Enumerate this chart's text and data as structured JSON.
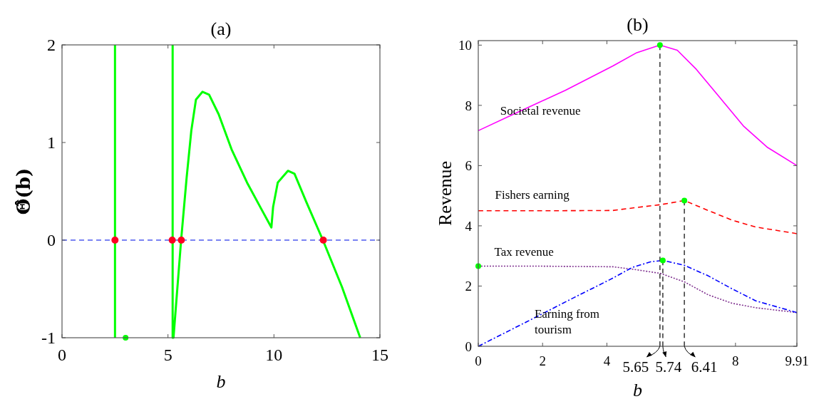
{
  "chart_data": [
    {
      "type": "line",
      "title": "(a)",
      "xlabel": "b",
      "ylabel": "Θ̂(b)",
      "xlim": [
        0,
        15
      ],
      "xticks": [
        0,
        5,
        10,
        15
      ],
      "ylim": [
        -1,
        2
      ],
      "yticks": [
        -1,
        0,
        1,
        2
      ],
      "grid": false,
      "legend": false,
      "ref_lines": [
        {
          "axis": "y",
          "value": 0,
          "color": "#4d5bf0",
          "line_style": "dashed"
        }
      ],
      "series": [
        {
          "type": "line",
          "color": "#00ff00",
          "line_style": "solid",
          "x": [
            2.5,
            2.5,
            3.9,
            5.22,
            5.22,
            5.26,
            5.62,
            5.88,
            6.1,
            6.32,
            6.63,
            6.94,
            7.39,
            8.0,
            8.73,
            9.4,
            9.88,
            9.96,
            10.18,
            10.66,
            10.97,
            11.53,
            12.31,
            13.21,
            14.07
          ],
          "values": [
            2,
            -1,
            null,
            2,
            -1,
            -1,
            0,
            0.64,
            1.12,
            1.44,
            1.52,
            1.49,
            1.29,
            0.93,
            0.59,
            0.32,
            0.13,
            0.34,
            0.59,
            0.71,
            0.68,
            0.39,
            0,
            -0.48,
            -1
          ]
        },
        {
          "type": "scatter",
          "color": "#ff0022",
          "marker": "circle",
          "x": [
            2.5,
            5.2,
            5.63,
            12.33
          ],
          "values": [
            0,
            0,
            0,
            0
          ]
        },
        {
          "type": "scatter",
          "color": "#00ff00",
          "marker": "circle",
          "x": [
            3.0
          ],
          "values": [
            -1
          ]
        }
      ]
    },
    {
      "type": "line",
      "title": "(b)",
      "xlabel": "b",
      "ylabel": "Revenue",
      "xlim": [
        0,
        9.91
      ],
      "xticks": [
        0,
        2,
        4,
        8,
        9.91
      ],
      "ylim": [
        0,
        10.15
      ],
      "yticks": [
        0,
        2,
        4,
        6,
        8,
        10
      ],
      "grid": false,
      "legend": false,
      "annotations": [
        {
          "text": "5.65",
          "x": 5.65,
          "y": 0
        },
        {
          "text": "5.74",
          "x": 5.74,
          "y": 0
        },
        {
          "text": "6.41",
          "x": 6.41,
          "y": 0
        }
      ],
      "series": [
        {
          "type": "line",
          "name": "Societal revenue",
          "color": "#ff00ff",
          "line_style": "solid",
          "x": [
            0,
            1.24,
            2.71,
            4.19,
            4.93,
            5.65,
            6.19,
            6.78,
            7.52,
            8.26,
            9.0,
            9.91
          ],
          "values": [
            7.16,
            7.78,
            8.5,
            9.31,
            9.75,
            10.0,
            9.83,
            9.2,
            8.25,
            7.3,
            6.6,
            6.0
          ]
        },
        {
          "type": "line",
          "name": "Fishers earning",
          "color": "#ff0000",
          "line_style": "dashed",
          "x": [
            0,
            2,
            4.19,
            4.93,
            5.65,
            6.41,
            7.15,
            7.89,
            8.63,
            9.91
          ],
          "values": [
            4.5,
            4.5,
            4.51,
            4.61,
            4.7,
            4.84,
            4.51,
            4.19,
            3.96,
            3.74
          ]
        },
        {
          "type": "line",
          "name": "Tax revenue",
          "color": "#7e2f8e",
          "line_style": "dotted",
          "x": [
            0,
            2,
            4.19,
            4.93,
            5.67,
            6.41,
            7.15,
            7.89,
            8.63,
            9.91
          ],
          "values": [
            2.66,
            2.66,
            2.64,
            2.54,
            2.42,
            2.14,
            1.71,
            1.43,
            1.28,
            1.12
          ]
        },
        {
          "type": "line",
          "name": "Earning from tourism",
          "color": "#0000ff",
          "line_style": "dashdot",
          "x": [
            0,
            1.5,
            3.0,
            4.2,
            4.79,
            5.38,
            5.74,
            6.41,
            7.15,
            7.89,
            8.63,
            9.91
          ],
          "values": [
            0,
            0.81,
            1.63,
            2.27,
            2.62,
            2.81,
            2.85,
            2.69,
            2.34,
            1.91,
            1.51,
            1.12
          ]
        },
        {
          "type": "line",
          "color": "#404040",
          "line_style": "dashed",
          "x": [
            5.65,
            5.65
          ],
          "values": [
            0,
            10.0
          ]
        },
        {
          "type": "line",
          "color": "#404040",
          "line_style": "dashed",
          "x": [
            5.74,
            5.74
          ],
          "values": [
            0,
            2.85
          ]
        },
        {
          "type": "line",
          "color": "#404040",
          "line_style": "dashed",
          "x": [
            6.41,
            6.41
          ],
          "values": [
            0,
            4.84
          ]
        },
        {
          "type": "scatter",
          "color": "#00ff00",
          "marker": "circle",
          "x": [
            0,
            5.65,
            5.74,
            6.41
          ],
          "values": [
            2.66,
            10.0,
            2.85,
            4.84
          ]
        }
      ]
    }
  ]
}
